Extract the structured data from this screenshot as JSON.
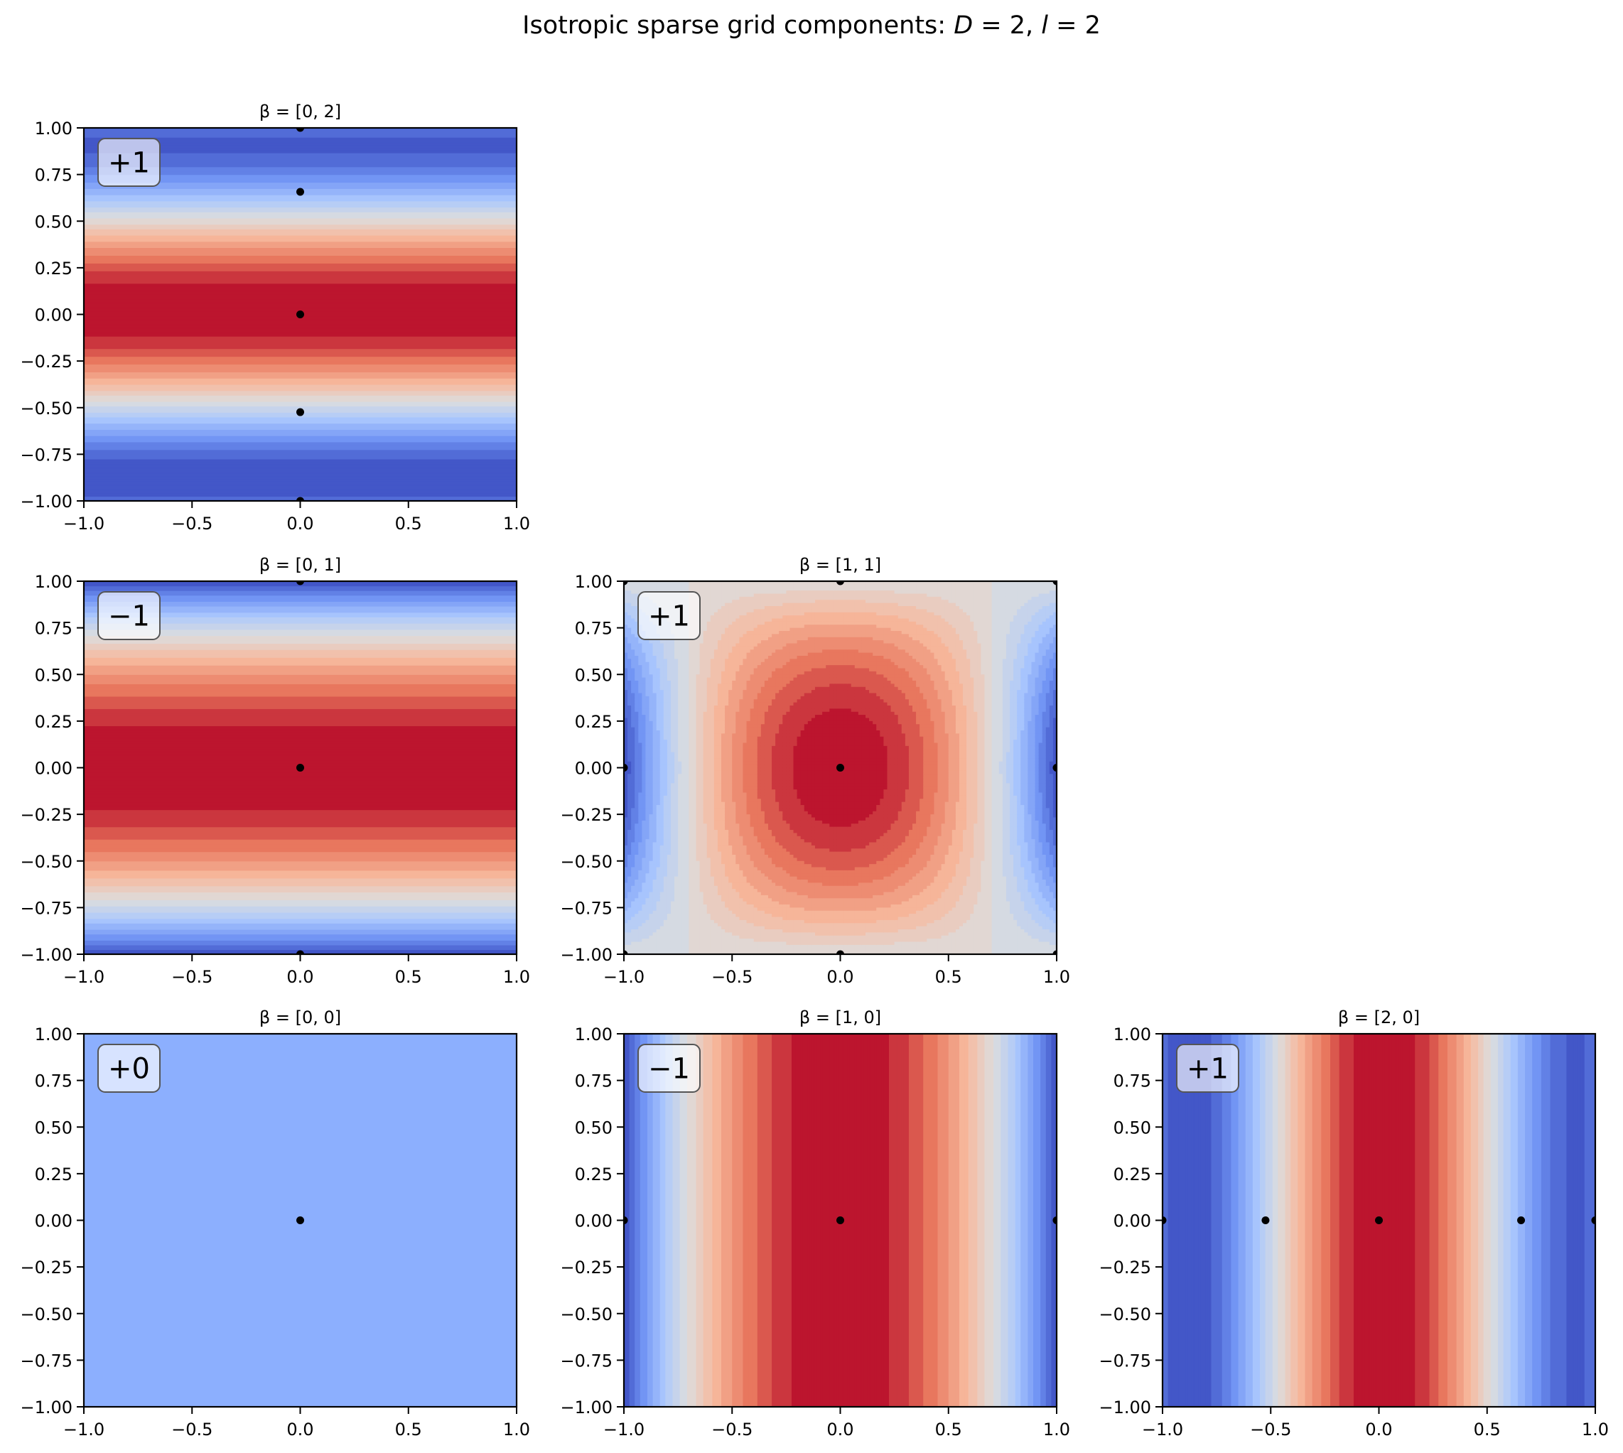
{
  "figure": {
    "title_prefix": "Isotropic sparse grid components: ",
    "title_D": "D",
    "title_D_value": " = 2, ",
    "title_l": "l",
    "title_l_value": " = 2"
  },
  "chart_data": {
    "type": "heatmap",
    "title": "Isotropic sparse grid components: D = 2, l = 2",
    "colormap": "coolwarm",
    "colormap_stops": [
      "#3b4cc0",
      "#6f92f3",
      "#aac7fd",
      "#dddddd",
      "#f7b89c",
      "#e7745b",
      "#b40426"
    ],
    "contour_levels": 20,
    "point_color": "#000000",
    "layout_grid": {
      "rows": 3,
      "cols": 3
    },
    "panels": [
      {
        "row": 0,
        "col": 0,
        "title": "β = [0, 2]",
        "beta": [
          0,
          2
        ],
        "coefficient_label": "+1",
        "coefficient": 1,
        "orientation": "horizontal-bands",
        "field": "1d-interpolant-in-y",
        "points": [
          [
            0,
            1.0
          ],
          [
            0,
            0.657
          ],
          [
            0,
            0.0
          ],
          [
            0,
            -0.524
          ],
          [
            0,
            -1.0
          ]
        ],
        "xlim": [
          -1,
          1
        ],
        "ylim": [
          -1,
          1
        ],
        "xticks": [
          "−1.0",
          "−0.5",
          "0.0",
          "0.5",
          "1.0"
        ],
        "yticks": [
          "1.00",
          "0.75",
          "0.50",
          "0.25",
          "0.00",
          "−0.25",
          "−0.50",
          "−0.75",
          "−1.00"
        ]
      },
      {
        "row": 1,
        "col": 0,
        "title": "β = [0, 1]",
        "beta": [
          0,
          1
        ],
        "coefficient_label": "−1",
        "coefficient": -1,
        "orientation": "horizontal-bands",
        "field": "1 - y^2",
        "points": [
          [
            0,
            1.0
          ],
          [
            0,
            0.0
          ],
          [
            0,
            -1.0
          ]
        ],
        "xlim": [
          -1,
          1
        ],
        "ylim": [
          -1,
          1
        ],
        "xticks": [
          "−1.0",
          "−0.5",
          "0.0",
          "0.5",
          "1.0"
        ],
        "yticks": [
          "1.00",
          "0.75",
          "0.50",
          "0.25",
          "0.00",
          "−0.25",
          "−0.50",
          "−0.75",
          "−1.00"
        ]
      },
      {
        "row": 1,
        "col": 1,
        "title": "β = [1, 1]",
        "beta": [
          1,
          1
        ],
        "coefficient_label": "+1",
        "coefficient": 1,
        "orientation": "2d",
        "field": "(1 - 2x^2)(1 - y^2)",
        "points": [
          [
            -1,
            1
          ],
          [
            0,
            1
          ],
          [
            1,
            1
          ],
          [
            -1,
            0
          ],
          [
            0,
            0
          ],
          [
            1,
            0
          ],
          [
            -1,
            -1
          ],
          [
            0,
            -1
          ],
          [
            1,
            -1
          ]
        ],
        "xlim": [
          -1,
          1
        ],
        "ylim": [
          -1,
          1
        ],
        "xticks": [
          "−1.0",
          "−0.5",
          "0.0",
          "0.5",
          "1.0"
        ],
        "yticks": [
          "1.00",
          "0.75",
          "0.50",
          "0.25",
          "0.00",
          "−0.25",
          "−0.50",
          "−0.75",
          "−1.00"
        ]
      },
      {
        "row": 2,
        "col": 0,
        "title": "β = [0, 0]",
        "beta": [
          0,
          0
        ],
        "coefficient_label": "+0",
        "coefficient": 0,
        "orientation": "constant",
        "field": "constant",
        "constant_color": "#8caffe",
        "points": [
          [
            0,
            0
          ]
        ],
        "xlim": [
          -1,
          1
        ],
        "ylim": [
          -1,
          1
        ],
        "xticks": [
          "−1.0",
          "−0.5",
          "0.0",
          "0.5",
          "1.0"
        ],
        "yticks": [
          "1.00",
          "0.75",
          "0.50",
          "0.25",
          "0.00",
          "−0.25",
          "−0.50",
          "−0.75",
          "−1.00"
        ]
      },
      {
        "row": 2,
        "col": 1,
        "title": "β = [1, 0]",
        "beta": [
          1,
          0
        ],
        "coefficient_label": "−1",
        "coefficient": -1,
        "orientation": "vertical-bands",
        "field": "1 - x^2",
        "points": [
          [
            -1,
            0
          ],
          [
            0,
            0
          ],
          [
            1,
            0
          ]
        ],
        "xlim": [
          -1,
          1
        ],
        "ylim": [
          -1,
          1
        ],
        "xticks": [
          "−1.0",
          "−0.5",
          "0.0",
          "0.5",
          "1.0"
        ],
        "yticks": [
          "1.00",
          "0.75",
          "0.50",
          "0.25",
          "0.00",
          "−0.25",
          "−0.50",
          "−0.75",
          "−1.00"
        ]
      },
      {
        "row": 2,
        "col": 2,
        "title": "β = [2, 0]",
        "beta": [
          2,
          0
        ],
        "coefficient_label": "+1",
        "coefficient": 1,
        "orientation": "vertical-bands",
        "field": "1d-interpolant-in-x",
        "points": [
          [
            -1.0,
            0
          ],
          [
            -0.524,
            0
          ],
          [
            0.0,
            0
          ],
          [
            0.657,
            0
          ],
          [
            1.0,
            0
          ]
        ],
        "xlim": [
          -1,
          1
        ],
        "ylim": [
          -1,
          1
        ],
        "xticks": [
          "−1.0",
          "−0.5",
          "0.0",
          "0.5",
          "1.0"
        ],
        "yticks": [
          "1.00",
          "0.75",
          "0.50",
          "0.25",
          "0.00",
          "−0.25",
          "−0.50",
          "−0.75",
          "−1.00"
        ]
      }
    ]
  }
}
